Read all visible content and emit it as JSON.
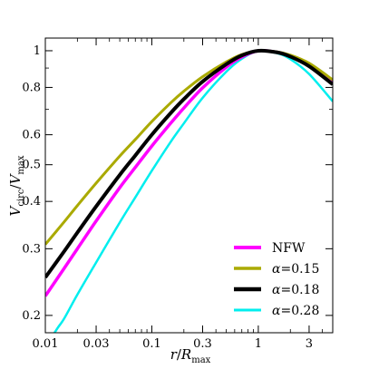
{
  "chart_data": {
    "type": "line",
    "title": "",
    "xlabel": {
      "var": "r",
      "slash": "/",
      "var2": "R",
      "sub": "max"
    },
    "ylabel": {
      "var": "V",
      "sub": "circ",
      "slash": "/",
      "var2": "V",
      "sub2": "max"
    },
    "xscale": "log",
    "yscale": "log",
    "xlim": [
      0.01,
      5.0
    ],
    "ylim": [
      0.18,
      1.08
    ],
    "xticks": [
      {
        "value": 0.01,
        "label": "0.01"
      },
      {
        "value": 0.03,
        "label": "0.03"
      },
      {
        "value": 0.1,
        "label": "0.1"
      },
      {
        "value": 0.3,
        "label": "0.3"
      },
      {
        "value": 1,
        "label": "1"
      },
      {
        "value": 3,
        "label": "3"
      }
    ],
    "yticks": [
      {
        "value": 0.2,
        "label": "0.2"
      },
      {
        "value": 0.3,
        "label": "0.3"
      },
      {
        "value": 0.4,
        "label": "0.4"
      },
      {
        "value": 0.5,
        "label": "0.5"
      },
      {
        "value": 0.6,
        "label": "0.6"
      },
      {
        "value": 0.8,
        "label": "0.8"
      },
      {
        "value": 1,
        "label": "1"
      }
    ],
    "grid": false,
    "legend_position": "bottom-right",
    "series": [
      {
        "name": "NFW",
        "label_parts": {
          "text": "NFW"
        },
        "color": "#ff00ff",
        "stroke": 3.5,
        "x": [
          0.01,
          0.015,
          0.02,
          0.03,
          0.05,
          0.07,
          0.1,
          0.15,
          0.2,
          0.3,
          0.5,
          0.7,
          1.0,
          1.5,
          2.0,
          3.0,
          5.0
        ],
        "y": [
          0.225,
          0.266,
          0.3,
          0.355,
          0.435,
          0.492,
          0.56,
          0.643,
          0.706,
          0.798,
          0.905,
          0.963,
          1.0,
          0.991,
          0.966,
          0.913,
          0.826
        ]
      },
      {
        "name": "α=0.15",
        "label_parts": {
          "greek": "α",
          "text": "=0.15"
        },
        "color": "#aaaa00",
        "stroke": 3.0,
        "x": [
          0.01,
          0.015,
          0.02,
          0.03,
          0.05,
          0.07,
          0.1,
          0.15,
          0.2,
          0.3,
          0.5,
          0.7,
          1.0,
          1.5,
          2.0,
          3.0,
          5.0
        ],
        "y": [
          0.308,
          0.353,
          0.39,
          0.447,
          0.527,
          0.583,
          0.65,
          0.728,
          0.782,
          0.854,
          0.934,
          0.977,
          1.0,
          0.993,
          0.974,
          0.927,
          0.838
        ]
      },
      {
        "name": "α=0.18",
        "label_parts": {
          "greek": "α",
          "text": "=0.18"
        },
        "color": "#000000",
        "stroke": 4.0,
        "x": [
          0.01,
          0.015,
          0.02,
          0.03,
          0.05,
          0.07,
          0.1,
          0.15,
          0.2,
          0.3,
          0.5,
          0.7,
          1.0,
          1.5,
          2.0,
          3.0,
          5.0
        ],
        "y": [
          0.252,
          0.295,
          0.331,
          0.388,
          0.47,
          0.529,
          0.6,
          0.684,
          0.745,
          0.829,
          0.921,
          0.972,
          1.0,
          0.99,
          0.965,
          0.91,
          0.815
        ]
      },
      {
        "name": "α=0.28",
        "label_parts": {
          "greek": "α",
          "text": "=0.28"
        },
        "color": "#00eeee",
        "stroke": 2.5,
        "x": [
          0.01,
          0.013,
          0.015,
          0.02,
          0.03,
          0.05,
          0.07,
          0.1,
          0.15,
          0.2,
          0.3,
          0.5,
          0.7,
          1.0,
          1.5,
          2.0,
          3.0,
          5.0
        ],
        "y": [
          0.165,
          0.185,
          0.196,
          0.227,
          0.276,
          0.352,
          0.41,
          0.482,
          0.574,
          0.643,
          0.751,
          0.88,
          0.952,
          0.998,
          0.985,
          0.95,
          0.868,
          0.735
        ]
      }
    ]
  }
}
